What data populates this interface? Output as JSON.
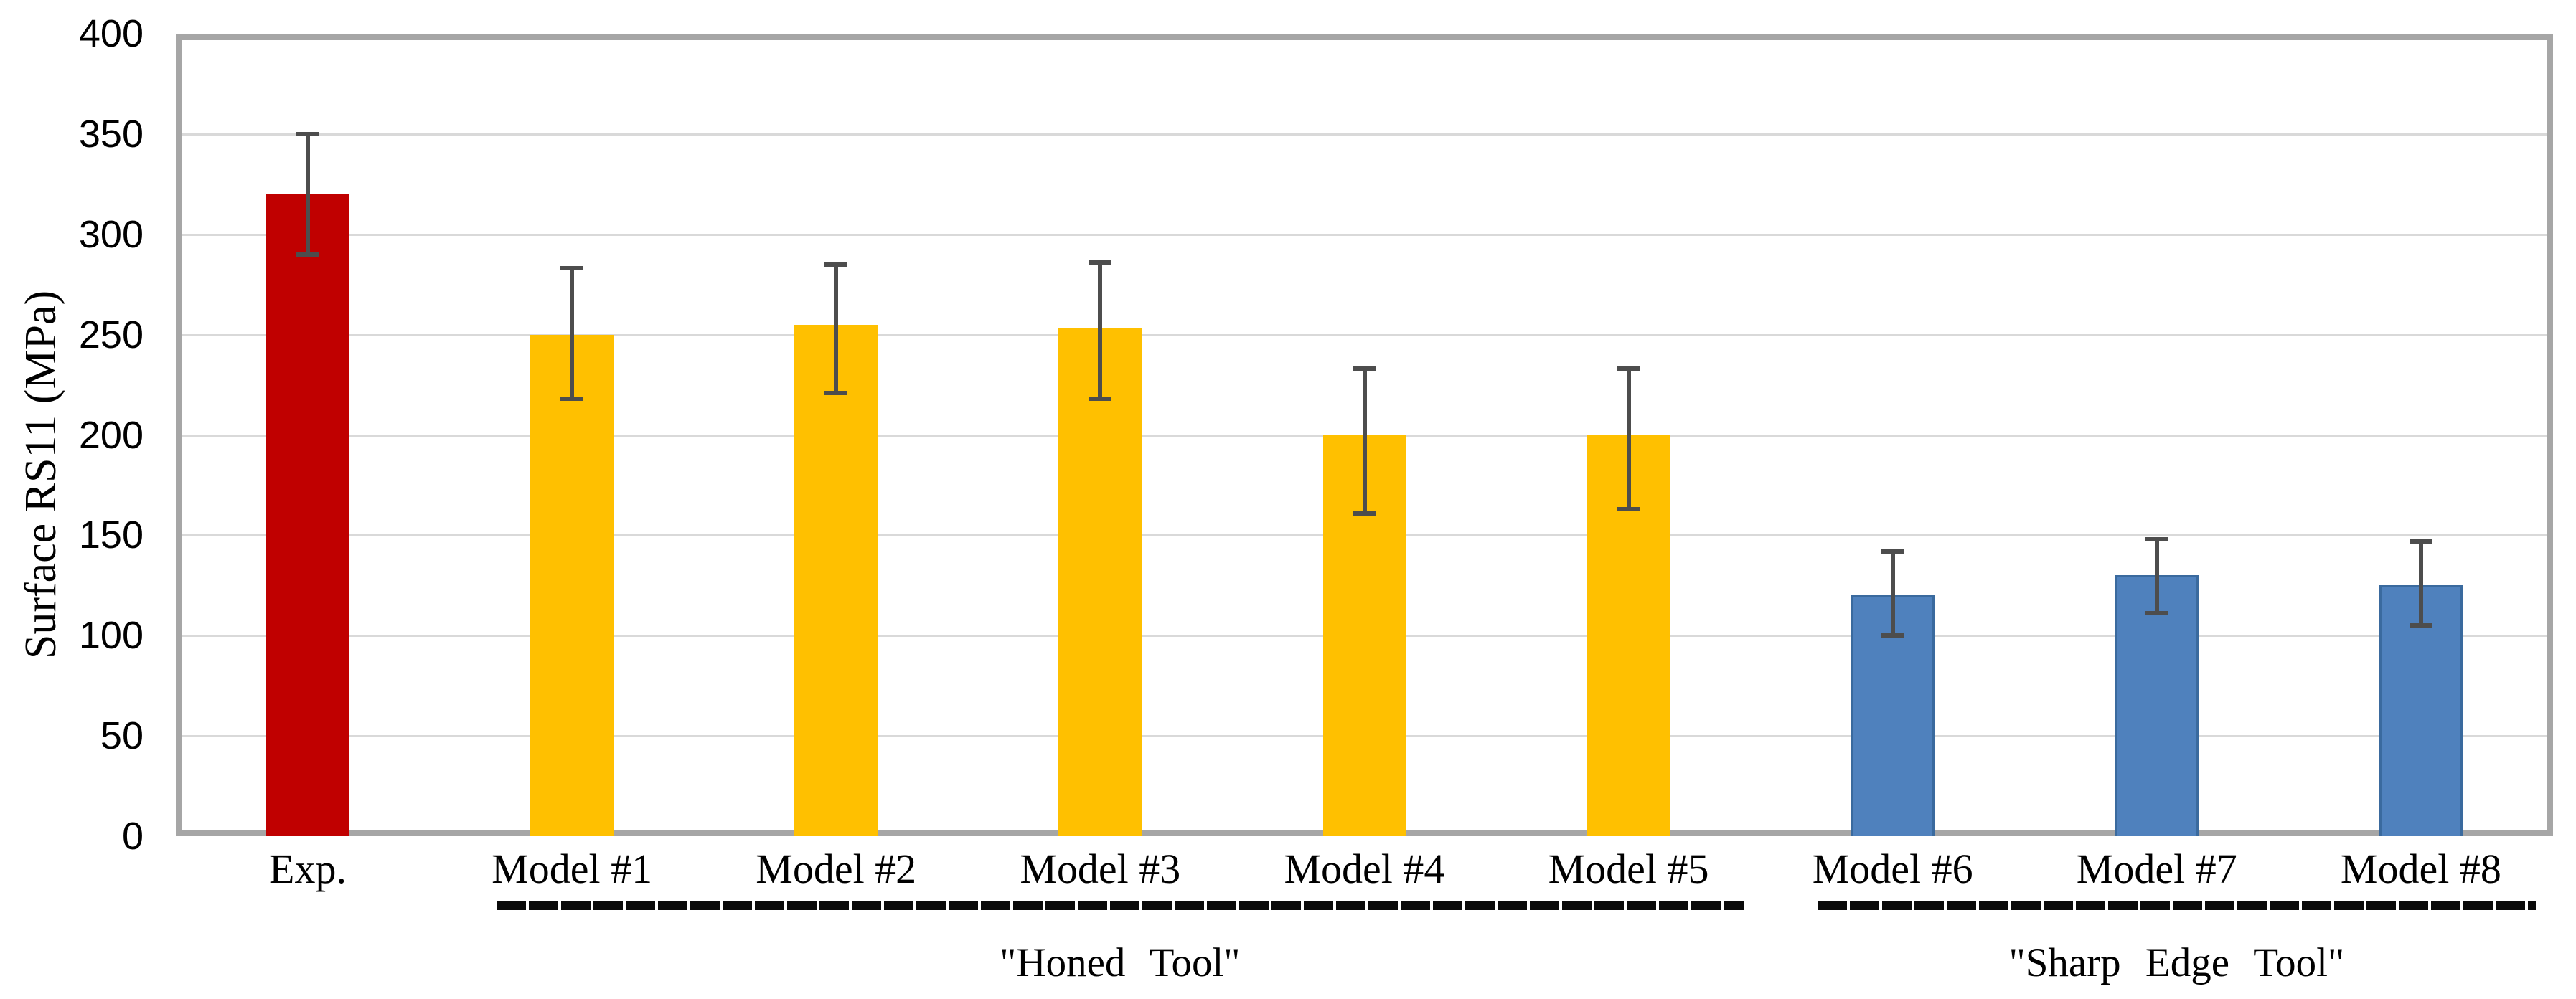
{
  "chart_data": {
    "type": "bar",
    "title": "",
    "xlabel": "",
    "ylabel": "Surface RS11 (MPa)",
    "ylim": [
      0,
      400
    ],
    "ytick_step": 50,
    "ytick_labels": [
      "0",
      "50",
      "100",
      "150",
      "200",
      "250",
      "300",
      "350",
      "400"
    ],
    "grid": "horizontal",
    "legend": "none",
    "categories": [
      "Exp.",
      "Model #1",
      "Model #2",
      "Model #3",
      "Model #4",
      "Model #5",
      "Model #6",
      "Model #7",
      "Model #8"
    ],
    "values": [
      320,
      250,
      255,
      253,
      200,
      200,
      120,
      130,
      125
    ],
    "error_high": [
      350,
      283,
      285,
      286,
      233,
      233,
      142,
      148,
      147
    ],
    "error_low": [
      290,
      218,
      221,
      218,
      161,
      163,
      100,
      111,
      105
    ],
    "series_group": [
      "exp",
      "honed",
      "honed",
      "honed",
      "honed",
      "honed",
      "sharp",
      "sharp",
      "sharp"
    ],
    "groups": [
      {
        "label": "\"Honed Tool\"",
        "start_index": 1,
        "end_index": 5
      },
      {
        "label": "\"Sharp Edge Tool\"",
        "start_index": 6,
        "end_index": 8
      }
    ],
    "colors": {
      "exp": "#C00000",
      "honed": "#FFC000",
      "sharp": "#4F81BD",
      "sharp_border": "#3A6A9E",
      "error_bar": "#4D4D4D",
      "gridline": "#D9D9D9",
      "axis_frame": "#A6A6A6",
      "bracket": "#0A0A0A",
      "text": "#000000"
    }
  }
}
